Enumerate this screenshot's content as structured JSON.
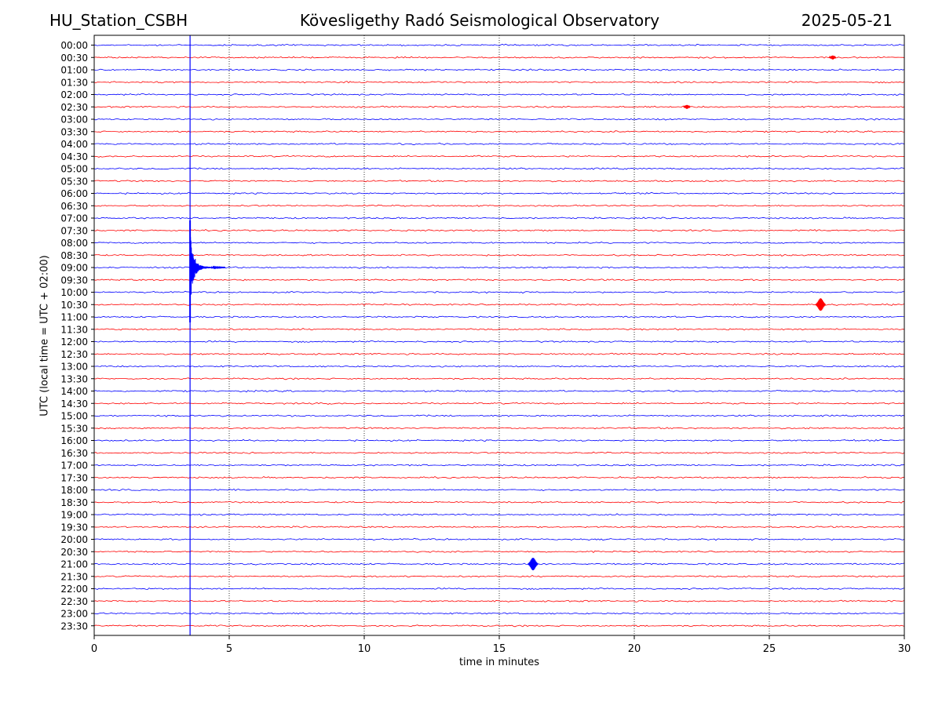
{
  "header": {
    "station": "HU_Station_CSBH",
    "title": "Kövesligethy Radó Seismological Observatory",
    "date": "2025-05-21"
  },
  "chart_data": {
    "type": "line",
    "xlabel": "time in minutes",
    "ylabel": "UTC (local time = UTC + 02:00)",
    "xlim": [
      0,
      30
    ],
    "xticks": [
      "0",
      "5",
      "10",
      "15",
      "20",
      "25",
      "30"
    ],
    "grid": "vertical dotted at 5-minute intervals",
    "row_labels": [
      "00:00",
      "00:30",
      "01:00",
      "01:30",
      "02:00",
      "02:30",
      "03:00",
      "03:30",
      "04:00",
      "04:30",
      "05:00",
      "05:30",
      "06:00",
      "06:30",
      "07:00",
      "07:30",
      "08:00",
      "08:30",
      "09:00",
      "09:30",
      "10:00",
      "10:30",
      "11:00",
      "11:30",
      "12:00",
      "12:30",
      "13:00",
      "13:30",
      "14:00",
      "14:30",
      "15:00",
      "15:30",
      "16:00",
      "16:30",
      "17:00",
      "17:30",
      "18:00",
      "18:30",
      "19:00",
      "19:30",
      "20:00",
      "20:30",
      "21:00",
      "21:30",
      "22:00",
      "22:30",
      "23:00",
      "23:30"
    ],
    "trace_colors": [
      "#0000ff",
      "#ff0000"
    ],
    "events": [
      {
        "row": "09:00",
        "t_minutes": 3.55,
        "kind": "main earthquake",
        "color": "#0000ff"
      },
      {
        "row": "10:30",
        "t_minutes": 26.9,
        "kind": "local event",
        "color": "#ff0000"
      },
      {
        "row": "21:00",
        "t_minutes": 16.25,
        "kind": "local event",
        "color": "#0000ff"
      },
      {
        "row": "02:30",
        "t_minutes": 21.95,
        "kind": "small event",
        "color": "#ff0000"
      },
      {
        "row": "00:30",
        "t_minutes": 27.35,
        "kind": "small event",
        "color": "#ff0000"
      }
    ]
  }
}
